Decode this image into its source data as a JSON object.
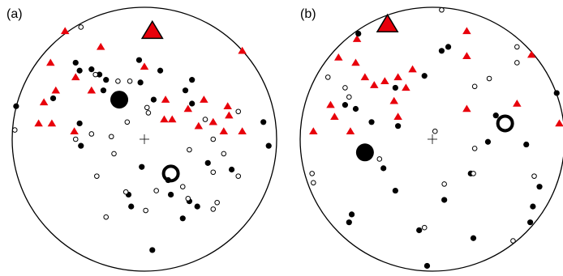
{
  "chart_data": [
    {
      "type": "scatter",
      "label": "(a)",
      "xlim": [
        -1,
        1
      ],
      "ylim": [
        -1,
        1
      ],
      "series": [
        {
          "marker": "triangle",
          "color": "#e8000b",
          "x": [
            -0.6,
            -0.33,
            0.0,
            -0.71,
            0.74,
            -0.52,
            -0.67,
            -0.4,
            -0.76,
            0.16,
            0.45,
            0.63,
            0.33,
            0.64,
            -0.8,
            -0.7,
            -0.53,
            0.15,
            0.21,
            0.6,
            0.74,
            0.41,
            0.52
          ],
          "y": [
            0.82,
            0.7,
            0.55,
            0.58,
            0.67,
            0.47,
            0.37,
            0.37,
            0.28,
            0.3,
            0.3,
            0.25,
            0.23,
            0.18,
            0.12,
            0.12,
            0.06,
            0.15,
            0.15,
            0.06,
            0.06,
            0.1,
            0.13
          ]
        },
        {
          "marker": "dot",
          "color": "#000000",
          "x": [
            -0.52,
            -0.49,
            -0.4,
            -0.34,
            -0.29,
            -0.04,
            -0.03,
            0.12,
            0.36,
            0.31,
            -0.31,
            -0.69,
            -0.97,
            -0.49,
            -0.48,
            0.07,
            0.36,
            0.9,
            0.94,
            -0.02,
            0.48,
            0.66,
            0.18,
            -0.1,
            -0.12,
            0.2,
            0.4,
            0.29,
            0.06,
            0.34
          ],
          "y": [
            0.58,
            0.52,
            0.53,
            0.49,
            0.45,
            0.6,
            0.43,
            0.52,
            0.45,
            0.37,
            0.37,
            0.31,
            0.25,
            0.12,
            -0.05,
            0.3,
            0.27,
            0.13,
            -0.05,
            -0.21,
            -0.18,
            -0.23,
            -0.31,
            -0.51,
            -0.42,
            -0.42,
            -0.51,
            -0.6,
            -0.84,
            -0.47
          ]
        },
        {
          "marker": "ring",
          "color": "#000000",
          "x": [
            -0.48,
            -0.37,
            -0.2,
            -0.11,
            0.02,
            0.03,
            -0.13,
            -0.98,
            -0.4,
            -0.25,
            -0.52,
            0.46,
            0.52,
            0.71,
            0.34,
            0.6,
            -0.23,
            0.52,
            0.71,
            -0.36,
            0.29,
            0.55,
            0.52,
            0.33,
            0.09,
            -0.14,
            0.01,
            -0.29
          ],
          "y": [
            0.85,
            0.49,
            0.44,
            0.44,
            0.24,
            0.2,
            0.13,
            0.07,
            0.04,
            0.02,
            0.0,
            0.15,
            0.0,
            0.21,
            -0.08,
            -0.11,
            -0.11,
            -0.25,
            -0.28,
            -0.28,
            -0.36,
            -0.48,
            -0.53,
            -0.45,
            -0.39,
            -0.4,
            -0.54,
            -0.59
          ]
        },
        {
          "marker": "triangle-large",
          "color": "#e8000b",
          "x": [
            0.06
          ],
          "y": [
            0.82
          ]
        },
        {
          "marker": "dot-large",
          "color": "#000000",
          "x": [
            -0.19
          ],
          "y": [
            0.3
          ]
        },
        {
          "marker": "ring-large",
          "color": "#000000",
          "x": [
            0.2
          ],
          "y": [
            -0.26
          ]
        }
      ]
    },
    {
      "type": "scatter",
      "label": "(b)",
      "xlim": [
        -1,
        1
      ],
      "ylim": [
        -1,
        1
      ],
      "series": [
        {
          "marker": "triangle",
          "color": "#e8000b",
          "x": [
            -0.57,
            -0.71,
            -0.58,
            -0.51,
            -0.44,
            -0.36,
            -0.26,
            -0.2,
            -0.15,
            0.26,
            0.26,
            0.75,
            -0.77,
            -0.74,
            -0.9,
            -0.62,
            -0.29,
            -0.26,
            0.26,
            0.64,
            0.96
          ],
          "y": [
            0.76,
            0.62,
            0.58,
            0.47,
            0.41,
            0.44,
            0.47,
            0.39,
            0.53,
            0.82,
            0.63,
            0.64,
            0.26,
            0.17,
            0.06,
            0.06,
            0.29,
            0.17,
            0.23,
            0.27,
            0.12
          ]
        },
        {
          "marker": "dot",
          "color": "#000000",
          "x": [
            -0.56,
            0.07,
            0.12,
            -0.06,
            -0.28,
            -0.58,
            -0.66,
            -0.46,
            -0.26,
            0.48,
            0.94,
            0.71,
            0.42,
            0.29,
            -0.28,
            0.09,
            0.81,
            0.76,
            0.74,
            -0.61,
            -0.63,
            -0.1,
            0.31,
            -0.04,
            -0.37
          ],
          "y": [
            0.8,
            0.67,
            0.7,
            0.48,
            0.39,
            0.23,
            0.26,
            0.13,
            0.1,
            0.18,
            0.35,
            -0.04,
            -0.02,
            -0.26,
            -0.39,
            -0.46,
            -0.36,
            -0.51,
            -0.63,
            -0.57,
            -0.63,
            -0.69,
            -0.75,
            -0.96,
            -0.22
          ]
        },
        {
          "marker": "ring",
          "color": "#000000",
          "x": [
            0.07,
            0.64,
            0.64,
            0.43,
            0.32,
            -0.79,
            -0.66,
            -0.63,
            0.02,
            -0.4,
            0.32,
            0.31,
            -0.91,
            -0.9,
            0.09,
            -0.06,
            0.61,
            0.77
          ],
          "y": [
            0.98,
            0.7,
            0.58,
            0.46,
            0.4,
            0.47,
            0.39,
            0.32,
            0.06,
            -0.15,
            -0.07,
            -0.26,
            -0.26,
            -0.33,
            -0.34,
            -0.67,
            -0.77,
            -0.28
          ]
        },
        {
          "marker": "triangle-large",
          "color": "#e8000b",
          "x": [
            -0.34
          ],
          "y": [
            0.87
          ]
        },
        {
          "marker": "dot-large",
          "color": "#000000",
          "x": [
            -0.51
          ],
          "y": [
            -0.1
          ]
        },
        {
          "marker": "ring-large",
          "color": "#000000",
          "x": [
            0.55
          ],
          "y": [
            0.12
          ]
        }
      ]
    }
  ]
}
